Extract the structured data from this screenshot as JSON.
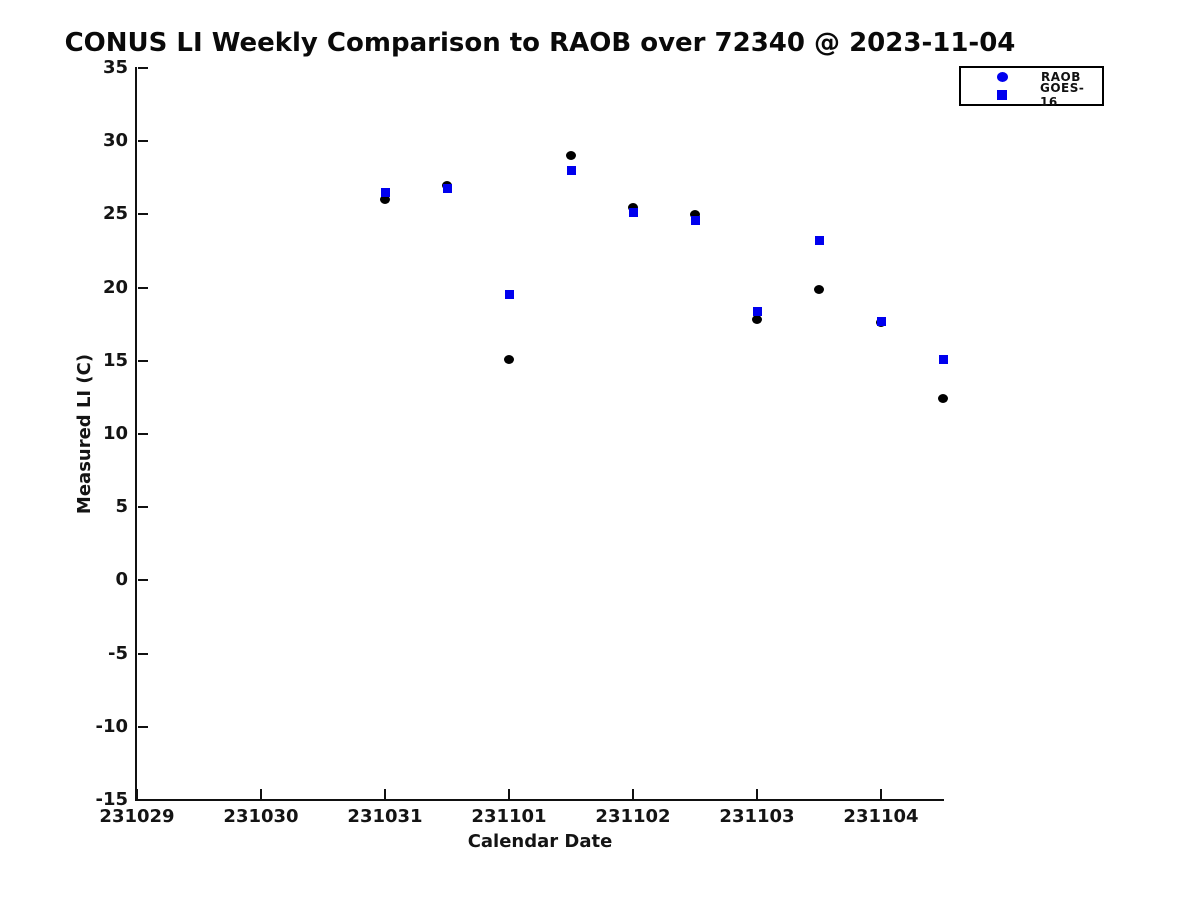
{
  "figure": {
    "background": "#ffffff"
  },
  "chart_data": {
    "type": "scatter",
    "title": "CONUS LI Weekly Comparison to RAOB over 72340 @ 2023-11-04",
    "xlabel": "Calendar Date",
    "ylabel": "Measured LI (C)",
    "x_tick_labels": [
      "231029",
      "231030",
      "231031",
      "231101",
      "231102",
      "231103",
      "231104"
    ],
    "y_tick_labels": [
      35,
      30,
      25,
      20,
      15,
      10,
      5,
      0,
      -5,
      -10,
      -15
    ],
    "xlim_days": [
      0,
      6.5
    ],
    "ylim": [
      -15,
      35
    ],
    "grid": false,
    "legend": {
      "position": "top-right",
      "entries": [
        {
          "label": "RAOB",
          "marker": "circle",
          "color": "#0000EE"
        },
        {
          "label": "GOES-16",
          "marker": "square",
          "color": "#0000EE"
        }
      ]
    },
    "series": [
      {
        "name": "RAOB",
        "marker": "circle",
        "color": "#000000",
        "x_labels": [
          "231031 00Z",
          "231031 12Z",
          "231101 00Z",
          "231101 12Z",
          "231102 00Z",
          "231102 12Z",
          "231103 00Z",
          "231103 12Z",
          "231104 00Z",
          "231104 12Z"
        ],
        "x_days": [
          2,
          2.5,
          3,
          3.5,
          4,
          4.5,
          5,
          5.5,
          6,
          6.5
        ],
        "values": [
          26.0,
          27.0,
          15.1,
          29.0,
          25.5,
          25.0,
          17.8,
          19.9,
          17.6,
          12.4
        ]
      },
      {
        "name": "GOES-16",
        "marker": "square",
        "color": "#0000EE",
        "x_labels": [
          "231031 00Z",
          "231031 12Z",
          "231101 00Z",
          "231101 12Z",
          "231102 00Z",
          "231102 12Z",
          "231103 00Z",
          "231103 12Z",
          "231104 00Z",
          "231104 12Z"
        ],
        "x_days": [
          2,
          2.5,
          3,
          3.5,
          4,
          4.5,
          5,
          5.5,
          6,
          6.5
        ],
        "values": [
          26.5,
          26.8,
          19.5,
          28.0,
          25.1,
          24.6,
          18.4,
          23.2,
          17.7,
          15.1
        ]
      }
    ]
  }
}
